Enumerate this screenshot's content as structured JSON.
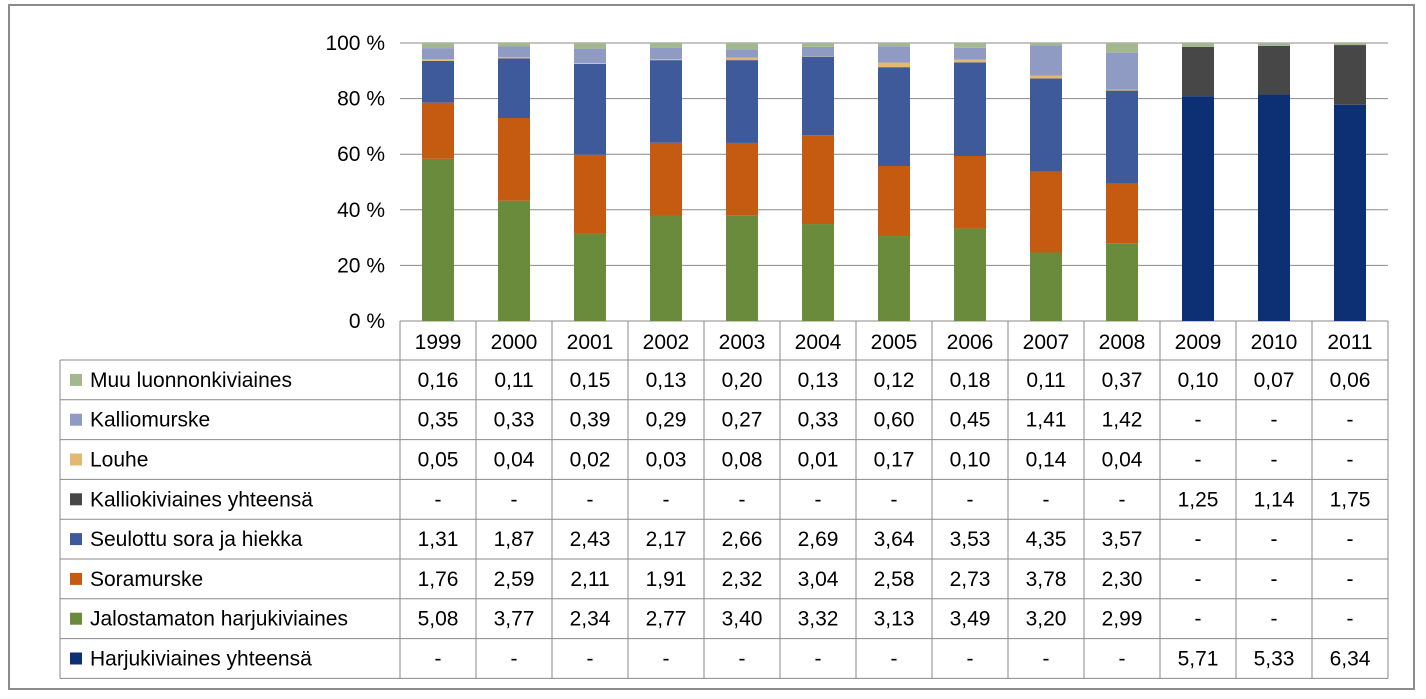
{
  "chart_data": {
    "type": "bar",
    "stacked": true,
    "percent_stacked": true,
    "categories": [
      "1999",
      "2000",
      "2001",
      "2002",
      "2003",
      "2004",
      "2005",
      "2006",
      "2007",
      "2008",
      "2009",
      "2010",
      "2011"
    ],
    "yticks": [
      "0 %",
      "20 %",
      "40 %",
      "60 %",
      "80 %",
      "100 %"
    ],
    "ylim": [
      0,
      100
    ],
    "series": [
      {
        "name": "Muu luonnonkiviaines",
        "color": "#a3b88e",
        "values": [
          0.16,
          0.11,
          0.15,
          0.13,
          0.2,
          0.13,
          0.12,
          0.18,
          0.11,
          0.37,
          0.1,
          0.07,
          0.06
        ],
        "labels": [
          "0,16",
          "0,11",
          "0,15",
          "0,13",
          "0,20",
          "0,13",
          "0,12",
          "0,18",
          "0,11",
          "0,37",
          "0,10",
          "0,07",
          "0,06"
        ]
      },
      {
        "name": "Kalliomurske",
        "color": "#8f9bc2",
        "values": [
          0.35,
          0.33,
          0.39,
          0.29,
          0.27,
          0.33,
          0.6,
          0.45,
          1.41,
          1.42,
          null,
          null,
          null
        ],
        "labels": [
          "0,35",
          "0,33",
          "0,39",
          "0,29",
          "0,27",
          "0,33",
          "0,60",
          "0,45",
          "1,41",
          "1,42",
          "-",
          "-",
          "-"
        ]
      },
      {
        "name": "Louhe",
        "color": "#e5b872",
        "values": [
          0.05,
          0.04,
          0.02,
          0.03,
          0.08,
          0.01,
          0.17,
          0.1,
          0.14,
          0.04,
          null,
          null,
          null
        ],
        "labels": [
          "0,05",
          "0,04",
          "0,02",
          "0,03",
          "0,08",
          "0,01",
          "0,17",
          "0,10",
          "0,14",
          "0,04",
          "-",
          "-",
          "-"
        ]
      },
      {
        "name": "Kalliokiviaines yhteensä",
        "color": "#474747",
        "values": [
          null,
          null,
          null,
          null,
          null,
          null,
          null,
          null,
          null,
          null,
          1.25,
          1.14,
          1.75
        ],
        "labels": [
          "-",
          "-",
          "-",
          "-",
          "-",
          "-",
          "-",
          "-",
          "-",
          "-",
          "1,25",
          "1,14",
          "1,75"
        ]
      },
      {
        "name": "Seulottu sora ja hiekka",
        "color": "#3f5a9a",
        "values": [
          1.31,
          1.87,
          2.43,
          2.17,
          2.66,
          2.69,
          3.64,
          3.53,
          4.35,
          3.57,
          null,
          null,
          null
        ],
        "labels": [
          "1,31",
          "1,87",
          "2,43",
          "2,17",
          "2,66",
          "2,69",
          "3,64",
          "3,53",
          "4,35",
          "3,57",
          "-",
          "-",
          "-"
        ]
      },
      {
        "name": "Soramurske",
        "color": "#c55a11",
        "values": [
          1.76,
          2.59,
          2.11,
          1.91,
          2.32,
          3.04,
          2.58,
          2.73,
          3.78,
          2.3,
          null,
          null,
          null
        ],
        "labels": [
          "1,76",
          "2,59",
          "2,11",
          "1,91",
          "2,32",
          "3,04",
          "2,58",
          "2,73",
          "3,78",
          "2,30",
          "-",
          "-",
          "-"
        ]
      },
      {
        "name": "Jalostamaton harjukiviaines",
        "color": "#6a8a3c",
        "values": [
          5.08,
          3.77,
          2.34,
          2.77,
          3.4,
          3.32,
          3.13,
          3.49,
          3.2,
          2.99,
          null,
          null,
          null
        ],
        "labels": [
          "5,08",
          "3,77",
          "2,34",
          "2,77",
          "3,40",
          "3,32",
          "3,13",
          "3,49",
          "3,20",
          "2,99",
          "-",
          "-",
          "-"
        ]
      },
      {
        "name": "Harjukiviaines yhteensä",
        "color": "#0d2f73",
        "values": [
          null,
          null,
          null,
          null,
          null,
          null,
          null,
          null,
          null,
          null,
          5.71,
          5.33,
          6.34
        ],
        "labels": [
          "-",
          "-",
          "-",
          "-",
          "-",
          "-",
          "-",
          "-",
          "-",
          "-",
          "5,71",
          "5,33",
          "6,34"
        ]
      }
    ],
    "stack_order_bottom_to_top": [
      "Jalostamaton harjukiviaines",
      "Harjukiviaines yhteensä",
      "Soramurske",
      "Seulottu sora ja hiekka",
      "Kalliokiviaines yhteensä",
      "Louhe",
      "Kalliomurske",
      "Muu luonnonkiviaines"
    ],
    "legend_position": "data-table-left"
  }
}
